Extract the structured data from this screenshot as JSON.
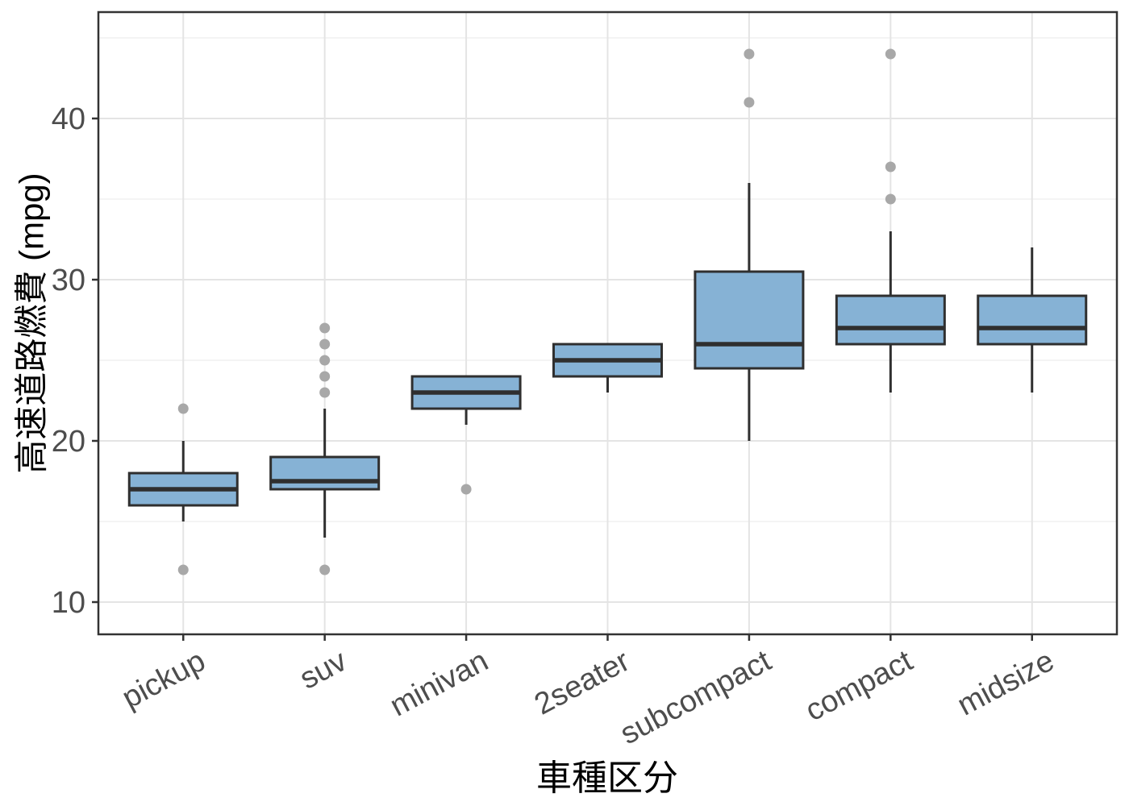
{
  "chart_data": {
    "type": "box",
    "title": "",
    "xlabel": "車種区分",
    "ylabel": "高速道路燃費 (mpg)",
    "categories": [
      "pickup",
      "suv",
      "minivan",
      "2seater",
      "subcompact",
      "compact",
      "midsize"
    ],
    "series": [
      {
        "category": "pickup",
        "q1": 16,
        "median": 17,
        "q3": 18,
        "whisker_low": 15,
        "whisker_high": 20,
        "outliers": [
          12,
          22
        ]
      },
      {
        "category": "suv",
        "q1": 17,
        "median": 17.5,
        "q3": 19,
        "whisker_low": 14,
        "whisker_high": 22,
        "outliers": [
          12,
          23,
          24,
          25,
          26,
          27
        ]
      },
      {
        "category": "minivan",
        "q1": 22,
        "median": 23,
        "q3": 24,
        "whisker_low": 21,
        "whisker_high": 24,
        "outliers": [
          17
        ]
      },
      {
        "category": "2seater",
        "q1": 24,
        "median": 25,
        "q3": 26,
        "whisker_low": 23,
        "whisker_high": 26,
        "outliers": []
      },
      {
        "category": "subcompact",
        "q1": 24.5,
        "median": 26,
        "q3": 30.5,
        "whisker_low": 20,
        "whisker_high": 36,
        "outliers": [
          41,
          44
        ]
      },
      {
        "category": "compact",
        "q1": 26,
        "median": 27,
        "q3": 29,
        "whisker_low": 23,
        "whisker_high": 33,
        "outliers": [
          35,
          37,
          44
        ]
      },
      {
        "category": "midsize",
        "q1": 26,
        "median": 27,
        "q3": 29,
        "whisker_low": 23,
        "whisker_high": 32,
        "outliers": []
      }
    ],
    "ylim": [
      8,
      46.6
    ],
    "yticks": [
      10,
      20,
      30,
      40
    ],
    "yticks_minor": [
      15,
      25,
      35,
      45
    ],
    "grid": "major+minor",
    "legend": "none",
    "x_tick_angle_deg": 28,
    "colors": {
      "box_fill": "#86b2d5",
      "box_stroke": "#2f2f2f",
      "median_stroke": "#2f2f2f",
      "whisker_stroke": "#2f2f2f",
      "outlier_fill": "#a8a8a8",
      "grid_major": "#e4e4e4",
      "grid_minor": "#f0f0f0",
      "panel_border": "#333333",
      "tick_mark": "#333333",
      "tick_text": "#4d4d4d",
      "title_text": "#000000",
      "panel_bg": "#ffffff"
    }
  }
}
